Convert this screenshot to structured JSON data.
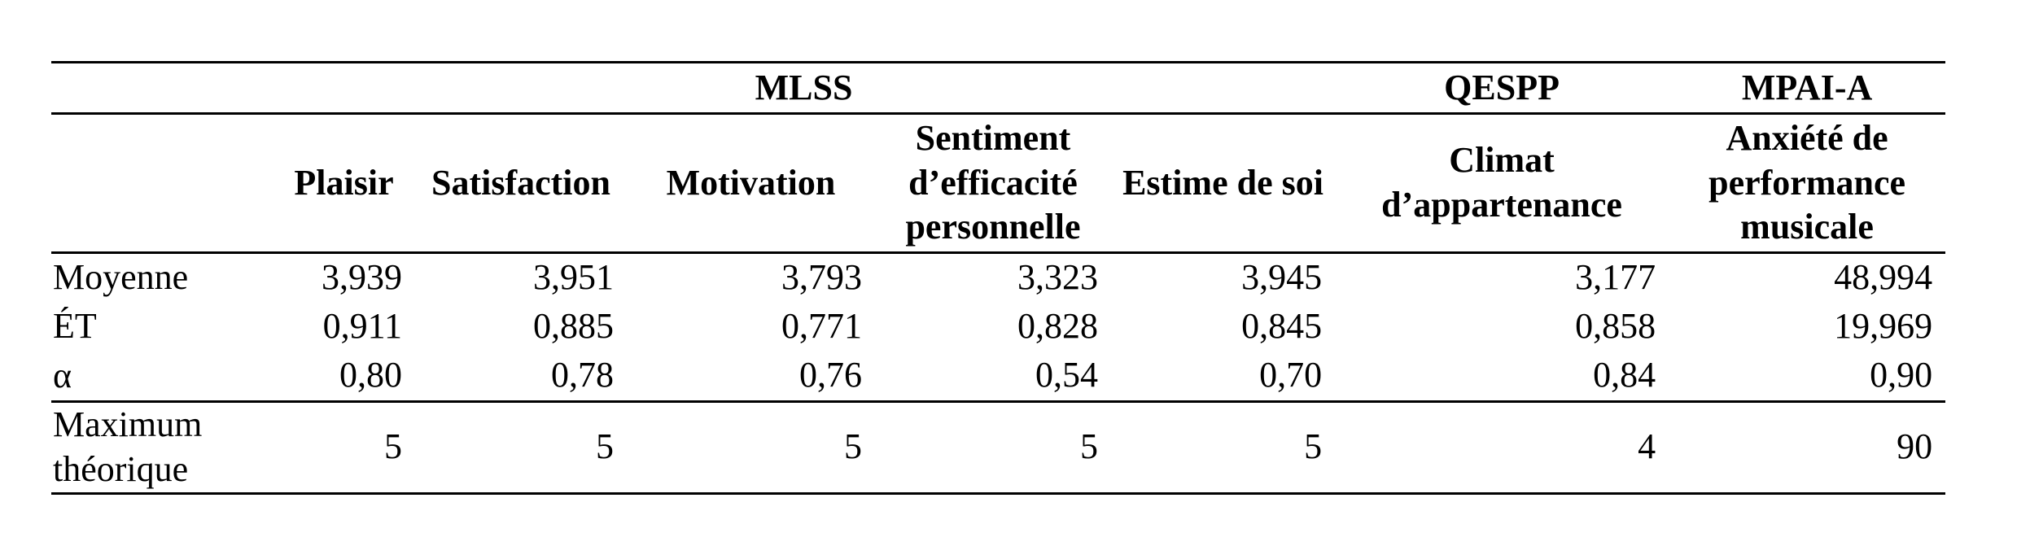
{
  "table": {
    "group_headers": [
      {
        "label": "MLSS"
      },
      {
        "label": "QESPP"
      },
      {
        "label": "MPAI-A"
      }
    ],
    "column_headers": [
      "Plaisir",
      "Satisfaction",
      "Motivation",
      "Sentiment d’efficacité personnelle",
      "Estime de soi",
      "Climat d’appartenance",
      "Anxiété de performance musicale"
    ],
    "rows": [
      {
        "label": "Moyenne",
        "values": [
          "3,939",
          "3,951",
          "3,793",
          "3,323",
          "3,945",
          "3,177",
          "48,994"
        ]
      },
      {
        "label": "ÉT",
        "values": [
          "0,911",
          "0,885",
          "0,771",
          "0,828",
          "0,845",
          "0,858",
          "19,969"
        ]
      },
      {
        "label": "α",
        "values": [
          "0,80",
          "0,78",
          "0,76",
          "0,54",
          "0,70",
          "0,84",
          "0,90"
        ]
      },
      {
        "label": "Maximum théorique",
        "values": [
          "5",
          "5",
          "5",
          "5",
          "5",
          "4",
          "90"
        ]
      }
    ]
  }
}
